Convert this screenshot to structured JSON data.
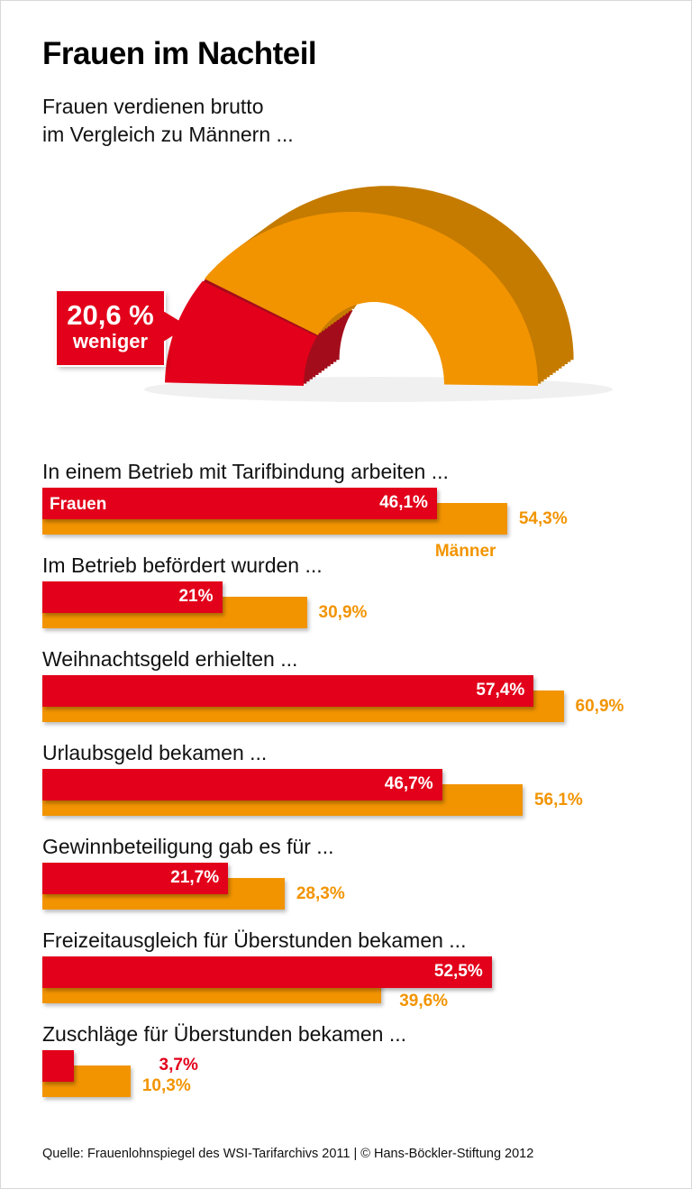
{
  "title": "Frauen im Nachteil",
  "subtitle_lines": [
    "Frauen verdienen brutto",
    "im Vergleich zu Männern ..."
  ],
  "colors": {
    "frauen": "#e2001a",
    "maenner": "#f29400",
    "frauen_dark": "#a30d1b",
    "maenner_dark": "#c57b00"
  },
  "gap": {
    "value_label": "20,6 %",
    "text": "weniger",
    "percent_less": 20.6
  },
  "legend": {
    "women": "Frauen",
    "men": "Männer"
  },
  "chart_data": {
    "type": "bar",
    "orientation": "horizontal",
    "unit": "%",
    "categories": [
      "In einem Betrieb mit Tarifbindung arbeiten ...",
      "Im Betrieb befördert wurden ...",
      "Weihnachtsgeld erhielten ...",
      "Urlaubsgeld bekamen ...",
      "Gewinnbeteiligung gab es für ...",
      "Freizeitausgleich für Überstunden bekamen ...",
      "Zuschläge für Überstunden bekamen ..."
    ],
    "series": [
      {
        "name": "Frauen",
        "values": [
          46.1,
          21,
          57.4,
          46.7,
          21.7,
          52.5,
          3.7
        ],
        "labels": [
          "46,1%",
          "21%",
          "57,4%",
          "46,7%",
          "21,7%",
          "52,5%",
          "3,7%"
        ]
      },
      {
        "name": "Männer",
        "values": [
          54.3,
          30.9,
          60.9,
          56.1,
          28.3,
          39.6,
          10.3
        ],
        "labels": [
          "54,3%",
          "30,9%",
          "60,9%",
          "56,1%",
          "28,3%",
          "39,6%",
          "10,3%"
        ]
      }
    ],
    "xlim": [
      0,
      70
    ],
    "grid": false
  },
  "source": "Quelle: Frauenlohnspiegel des WSI-Tarifarchivs 2011 | © Hans-Böckler-Stiftung 2012"
}
